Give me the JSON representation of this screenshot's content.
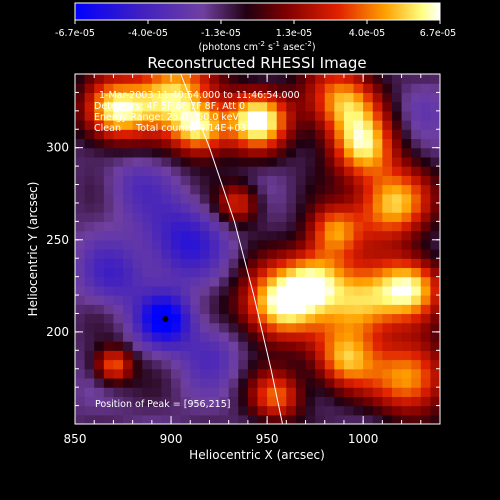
{
  "chart_data": {
    "type": "heatmap",
    "title": "Reconstructed RHESSI Image",
    "xlabel": "Heliocentric X (arcsec)",
    "ylabel": "Heliocentric Y (arcsec)",
    "xlim": [
      850,
      1040
    ],
    "ylim": [
      150,
      340
    ],
    "xticks": [
      850,
      900,
      950,
      1000
    ],
    "yticks": [
      200,
      250,
      300
    ],
    "colorbar": {
      "ticks": [
        "-6.7e-05",
        "-4.0e-05",
        "-1.3e-05",
        "1.3e-05",
        "4.0e-05",
        "6.7e-05"
      ],
      "units_text": "(photons cm",
      "units_parts": [
        "(photons cm",
        "-2",
        " s",
        "-1",
        " asec",
        "-2",
        ")"
      ],
      "range": [
        -6.7e-05,
        6.7e-05
      ],
      "colormap": [
        "#0000ff",
        "#5030b0",
        "#200010",
        "#800000",
        "#e02000",
        "#ffa000",
        "#ffff80",
        "#ffffff"
      ]
    },
    "annotations": [
      "1-Mar-2003 11:40:54.000 to 11:46:54.000",
      "Detectors: 4F 5F 6F 7F 8F, Att 0",
      "Energy Range: 25.0 - 50.0 keV",
      "Clean     Total counts: 4.14E+03"
    ],
    "peak_label": "Position of Peak = [956,215]",
    "peak": [
      956,
      215
    ],
    "limb_curve": [
      [
        905,
        340
      ],
      [
        920,
        300
      ],
      [
        933,
        260
      ],
      [
        943,
        220
      ],
      [
        952,
        180
      ],
      [
        958,
        150
      ]
    ],
    "hotspots": [
      {
        "x": 870,
        "y": 320,
        "value": 6e-05,
        "sigma": 12
      },
      {
        "x": 900,
        "y": 330,
        "value": 5.5e-05,
        "sigma": 15
      },
      {
        "x": 915,
        "y": 310,
        "value": 5e-05,
        "sigma": 10
      },
      {
        "x": 945,
        "y": 315,
        "value": 6.5e-05,
        "sigma": 12
      },
      {
        "x": 990,
        "y": 325,
        "value": 5e-05,
        "sigma": 14
      },
      {
        "x": 1000,
        "y": 300,
        "value": 4.5e-05,
        "sigma": 12
      },
      {
        "x": 1015,
        "y": 270,
        "value": 5.5e-05,
        "sigma": 14
      },
      {
        "x": 985,
        "y": 255,
        "value": 4e-05,
        "sigma": 10
      },
      {
        "x": 956,
        "y": 215,
        "value": 6.7e-05,
        "sigma": 14
      },
      {
        "x": 975,
        "y": 230,
        "value": 4.5e-05,
        "sigma": 12
      },
      {
        "x": 1000,
        "y": 215,
        "value": 5e-05,
        "sigma": 14
      },
      {
        "x": 1025,
        "y": 225,
        "value": 5.5e-05,
        "sigma": 12
      },
      {
        "x": 990,
        "y": 185,
        "value": 4.5e-05,
        "sigma": 12
      },
      {
        "x": 1025,
        "y": 175,
        "value": 5e-05,
        "sigma": 14
      },
      {
        "x": 955,
        "y": 165,
        "value": 3.5e-05,
        "sigma": 10
      },
      {
        "x": 870,
        "y": 182,
        "value": 4e-05,
        "sigma": 7
      },
      {
        "x": 935,
        "y": 270,
        "value": 3e-05,
        "sigma": 8
      },
      {
        "x": 880,
        "y": 280,
        "value": -3e-05,
        "sigma": 12
      },
      {
        "x": 897,
        "y": 207,
        "value": -6.7e-05,
        "sigma": 10
      },
      {
        "x": 905,
        "y": 250,
        "value": -5e-05,
        "sigma": 15
      },
      {
        "x": 870,
        "y": 230,
        "value": -4e-05,
        "sigma": 12
      },
      {
        "x": 920,
        "y": 190,
        "value": -3.5e-05,
        "sigma": 12
      },
      {
        "x": 1030,
        "y": 325,
        "value": -2.5e-05,
        "sigma": 10
      }
    ]
  }
}
